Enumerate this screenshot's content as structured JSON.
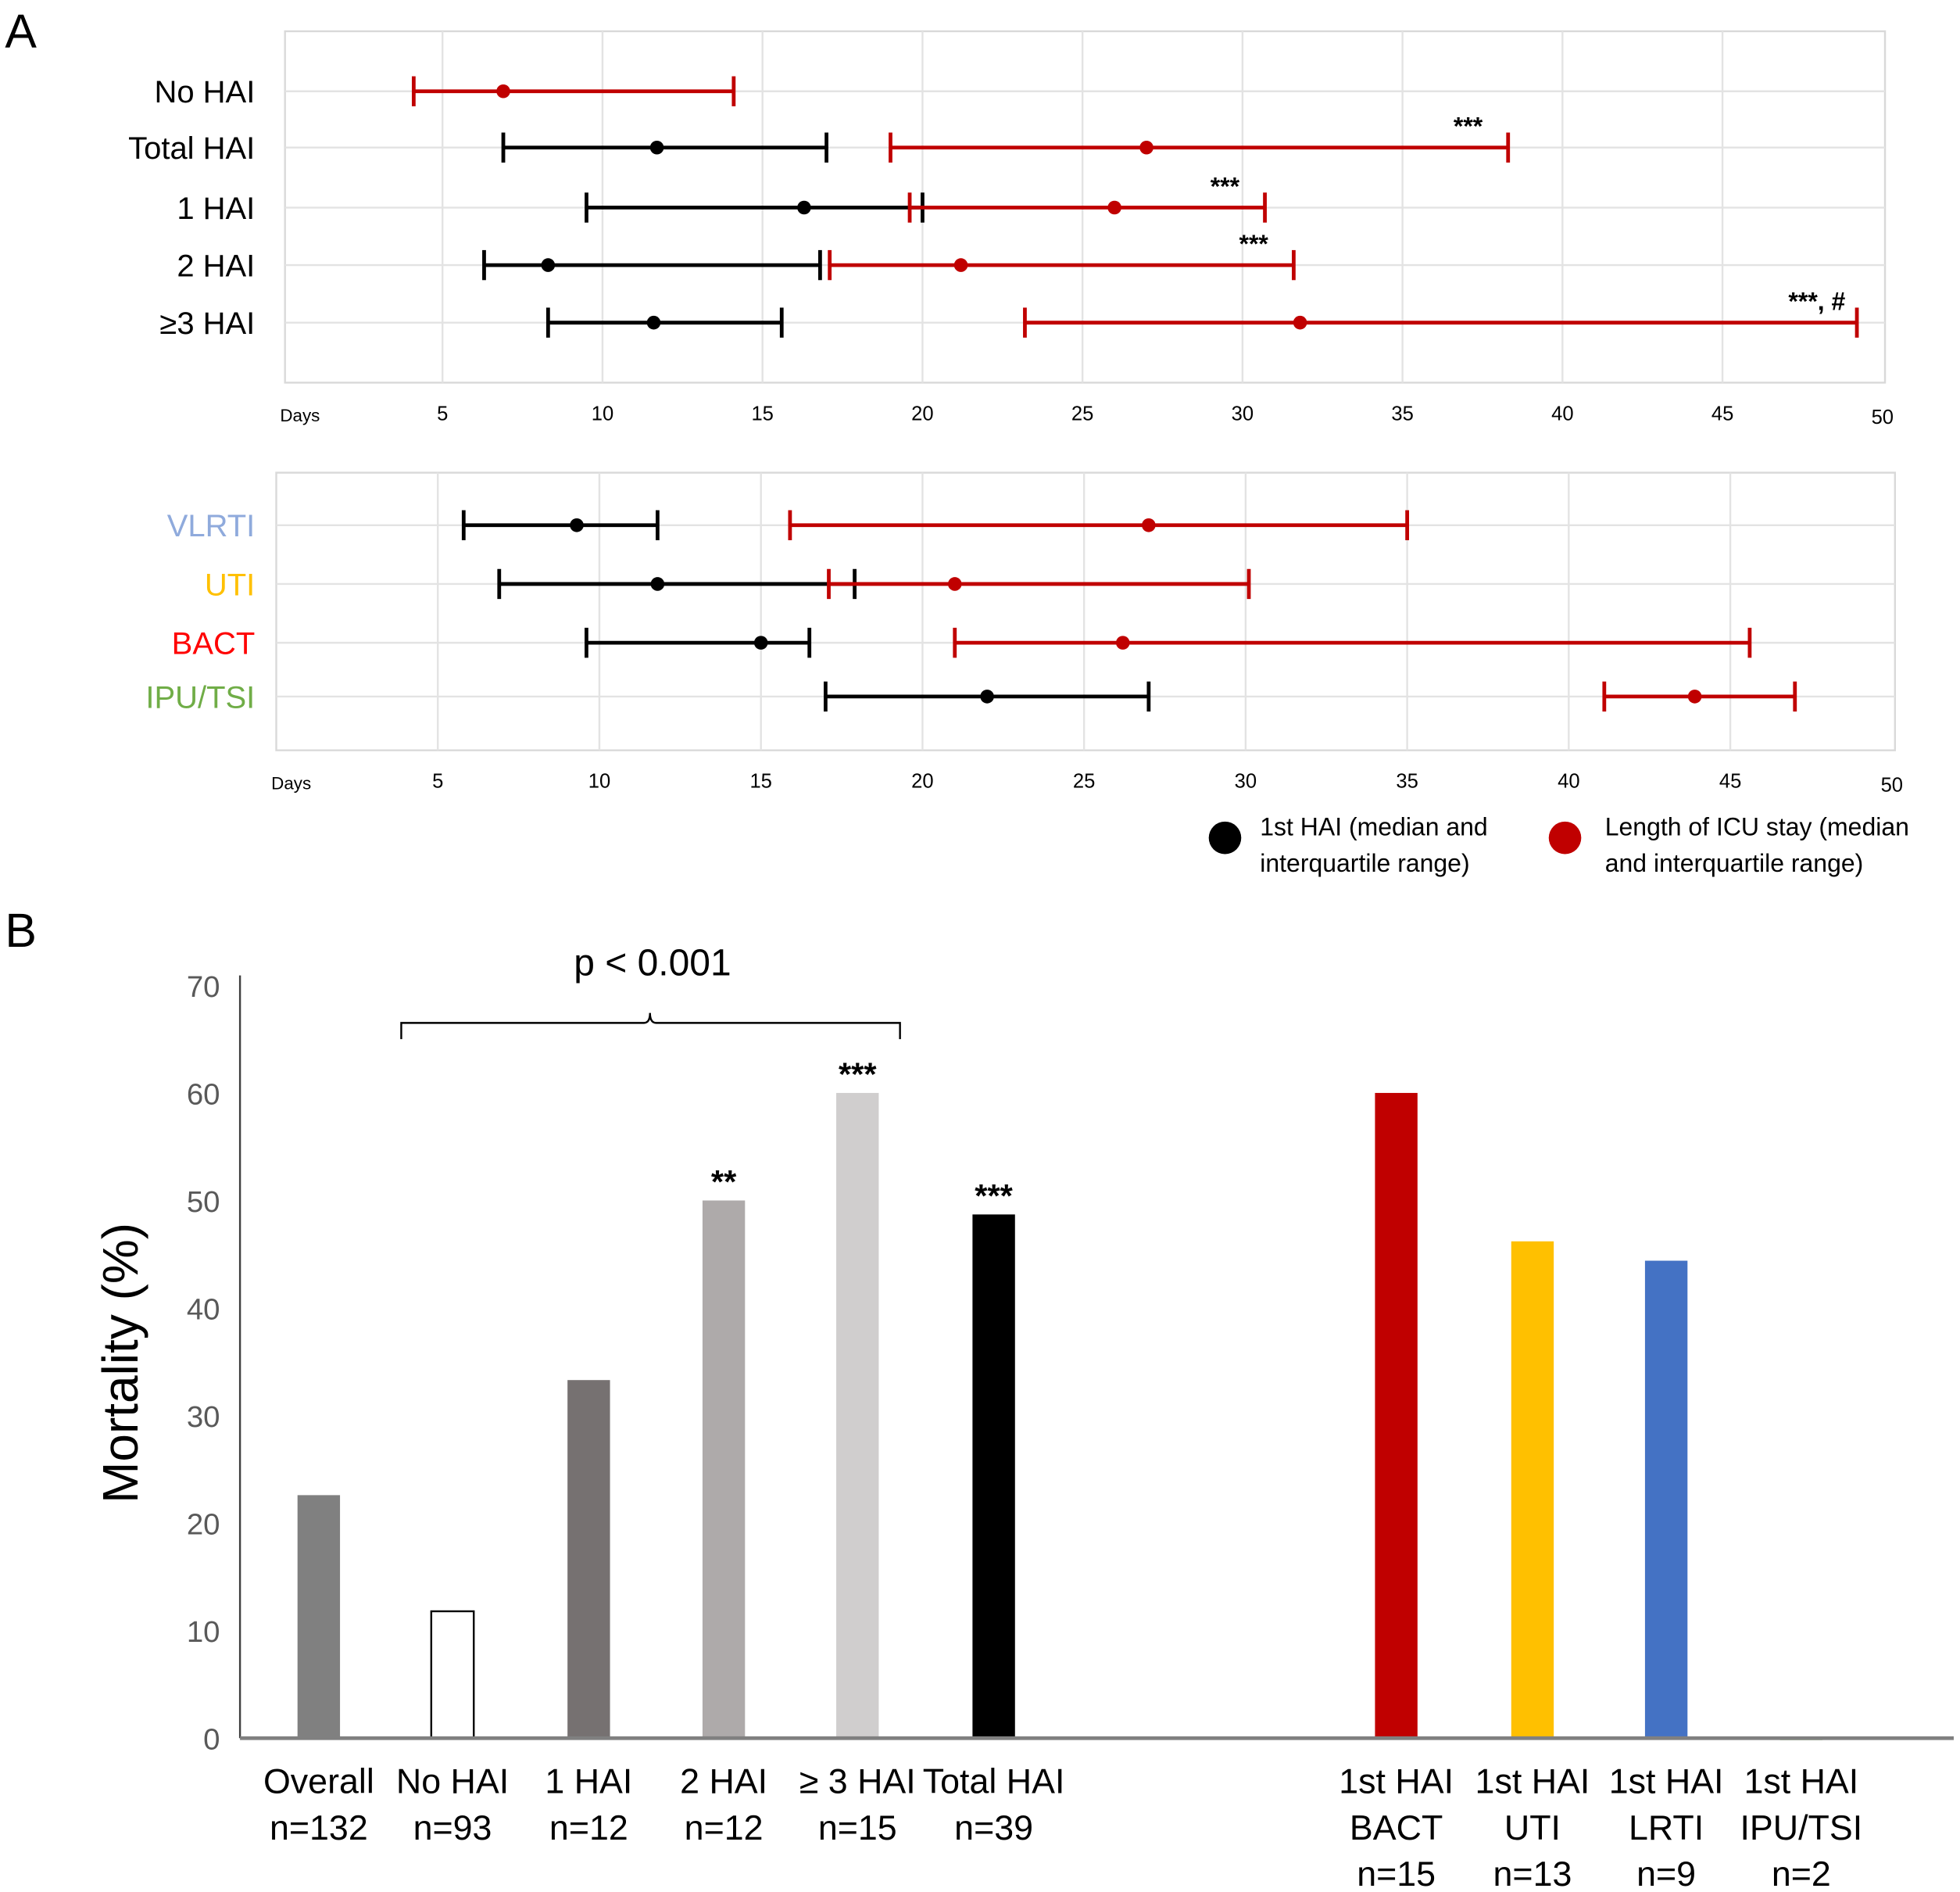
{
  "panel_labels": [
    "A",
    "B"
  ],
  "chart_data": [
    {
      "type": "interval",
      "panel": "A",
      "xlabel": "Days",
      "xticks": [
        5,
        10,
        15,
        20,
        25,
        30,
        35,
        40,
        45,
        50
      ],
      "xlim": [
        0,
        50
      ],
      "grid": true,
      "rows": [
        {
          "label": "No HAI",
          "color": "#000000",
          "first_hai": null,
          "icu_stay": {
            "q1": 4.1,
            "median": 6.9,
            "q3": 14.1
          },
          "annotation": ""
        },
        {
          "label": "Total HAI",
          "color": "#000000",
          "first_hai": {
            "q1": 6.9,
            "median": 11.7,
            "q3": 17.0
          },
          "icu_stay": {
            "q1": 19.0,
            "median": 27.0,
            "q3": 38.3
          },
          "annotation": "***"
        },
        {
          "label": "1 HAI",
          "color": "#000000",
          "first_hai": {
            "q1": 9.5,
            "median": 16.3,
            "q3": 20.0
          },
          "icu_stay": {
            "q1": 19.6,
            "median": 26.0,
            "q3": 30.7
          },
          "annotation": "***"
        },
        {
          "label": "2 HAI",
          "color": "#000000",
          "first_hai": {
            "q1": 6.3,
            "median": 8.3,
            "q3": 16.8
          },
          "icu_stay": {
            "q1": 17.1,
            "median": 21.2,
            "q3": 31.6
          },
          "annotation": "***"
        },
        {
          "label": "≥3 HAI",
          "color": "#000000",
          "first_hai": {
            "q1": 8.3,
            "median": 11.6,
            "q3": 15.6
          },
          "icu_stay": {
            "q1": 23.2,
            "median": 31.8,
            "q3": 49.2
          },
          "annotation": "***, #"
        }
      ]
    },
    {
      "type": "interval",
      "panel": "A",
      "xlabel": "Days",
      "xticks": [
        5,
        10,
        15,
        20,
        25,
        30,
        35,
        40,
        45,
        50
      ],
      "xlim": [
        0,
        50
      ],
      "grid": true,
      "rows": [
        {
          "label": "VLRTI",
          "color": "#8faadc",
          "first_hai": {
            "q1": 5.8,
            "median": 9.3,
            "q3": 11.8
          },
          "icu_stay": {
            "q1": 15.9,
            "median": 27.0,
            "q3": 35.0
          }
        },
        {
          "label": "UTI",
          "color": "#ffc000",
          "first_hai": {
            "q1": 6.9,
            "median": 11.8,
            "q3": 17.9
          },
          "icu_stay": {
            "q1": 17.1,
            "median": 21.0,
            "q3": 30.1
          }
        },
        {
          "label": "BACT",
          "color": "#ff0000",
          "first_hai": {
            "q1": 9.6,
            "median": 15.0,
            "q3": 16.5
          },
          "icu_stay": {
            "q1": 21.0,
            "median": 26.2,
            "q3": 45.6
          }
        },
        {
          "label": "IPU/TSI",
          "color": "#70ad47",
          "first_hai": {
            "q1": 17.0,
            "median": 22.0,
            "q3": 27.0
          },
          "icu_stay": {
            "q1": 41.1,
            "median": 43.9,
            "q3": 47.0
          }
        }
      ],
      "legend": [
        {
          "name": "first_hai",
          "lines": [
            "1st HAI (median and",
            "interquartile range)"
          ],
          "color": "#000000"
        },
        {
          "name": "icu_stay",
          "lines": [
            "Length of ICU stay (median",
            "and interquartile range)"
          ],
          "color": "#c00000"
        }
      ],
      "legend_placement": "bottom-right"
    },
    {
      "type": "bar",
      "panel": "B",
      "ylabel": "Mortality (%)",
      "ylim": [
        0,
        70
      ],
      "yticks": [
        0,
        10,
        20,
        30,
        40,
        50,
        60,
        70
      ],
      "grid": false,
      "bars": [
        {
          "lines": [
            "Overall",
            "n=132"
          ],
          "value": 22.6,
          "color": "#808080",
          "annotation": ""
        },
        {
          "lines": [
            "No HAI",
            "n=93"
          ],
          "value": 11.8,
          "color": "#ffffff",
          "annotation": ""
        },
        {
          "lines": [
            "1 HAI",
            "n=12"
          ],
          "value": 33.3,
          "color": "#767171",
          "annotation": ""
        },
        {
          "lines": [
            "2 HAI",
            "n=12"
          ],
          "value": 50.0,
          "color": "#aeaaaa",
          "annotation": "**"
        },
        {
          "lines": [
            "≥ 3 HAI",
            "n=15"
          ],
          "value": 60.0,
          "color": "#d0cece",
          "annotation": "***"
        },
        {
          "lines": [
            "Total HAI",
            "n=39"
          ],
          "value": 48.7,
          "color": "#000000",
          "annotation": "***"
        },
        {
          "lines": [
            "1st HAI",
            "BACT",
            "n=15"
          ],
          "value": 60.0,
          "color": "#c00000",
          "annotation": ""
        },
        {
          "lines": [
            "1st HAI",
            "UTI",
            "n=13"
          ],
          "value": 46.2,
          "color": "#ffc000",
          "annotation": ""
        },
        {
          "lines": [
            "1st HAI",
            "LRTI",
            "n=9"
          ],
          "value": 44.4,
          "color": "#4472c4",
          "annotation": ""
        },
        {
          "lines": [
            "1st HAI",
            "IPU/TSI",
            "n=2"
          ],
          "value": 0,
          "color": "#70ad47",
          "annotation": ""
        }
      ],
      "bracket_annotation": "p < 0.001"
    }
  ]
}
